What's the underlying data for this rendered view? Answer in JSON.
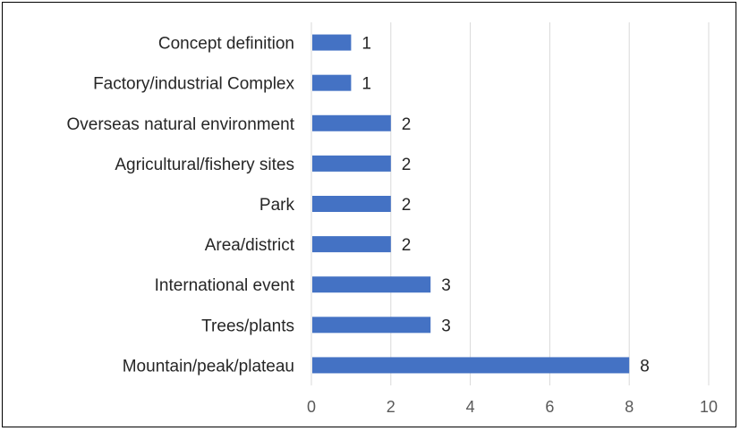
{
  "chart_data": {
    "type": "bar",
    "orientation": "horizontal",
    "categories": [
      "Concept definition",
      "Factory/industrial Complex",
      "Overseas natural environment",
      "Agricultural/fishery sites",
      "Park",
      "Area/district",
      "International event",
      "Trees/plants",
      "Mountain/peak/plateau"
    ],
    "values": [
      1,
      1,
      2,
      2,
      2,
      2,
      3,
      3,
      8
    ],
    "xticks": [
      0,
      2,
      4,
      6,
      8,
      10
    ],
    "xlim": [
      0,
      10
    ],
    "grid": true,
    "legend": "none",
    "title": "",
    "xlabel": "",
    "ylabel": "",
    "colors": {
      "bar": "#4472C4",
      "grid": "#D9D9D9"
    }
  }
}
